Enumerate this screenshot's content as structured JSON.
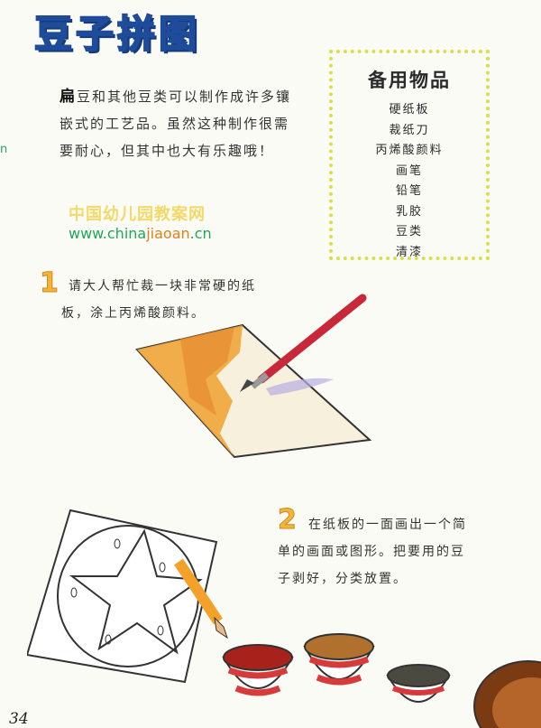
{
  "title": "豆子拼图",
  "edge_letter": "n",
  "intro": {
    "drop_char": "扁",
    "text": "豆和其他豆类可以制作成许多镶嵌式的工艺品。虽然这种制作很需要耐心，但其中也大有乐趣哦！"
  },
  "watermark": {
    "cn": "中国幼儿园教案网",
    "url_prefix": "www.china",
    "url_highlight": "jiaoan",
    "url_suffix": ".cn"
  },
  "supplies": {
    "title": "备用物品",
    "items": [
      "硬纸板",
      "裁纸刀",
      "丙烯酸颜料",
      "画笔",
      "铅笔",
      "乳胶",
      "豆类",
      "清漆"
    ]
  },
  "steps": [
    {
      "num": "1",
      "text": "请大人帮忙裁一块非常硬的纸板，涂上丙烯酸颜料。"
    },
    {
      "num": "2",
      "text": "在纸板的一面画出一个简单的画面或图形。把要用的豆子剥好，分类放置。"
    }
  ],
  "page_number": "34",
  "colors": {
    "title": "#4f86d6",
    "step_number": "#f3b43a",
    "supplies_border": "#d7e04a",
    "watermark_green": "#1ea75a",
    "watermark_orange": "#e07f17"
  }
}
